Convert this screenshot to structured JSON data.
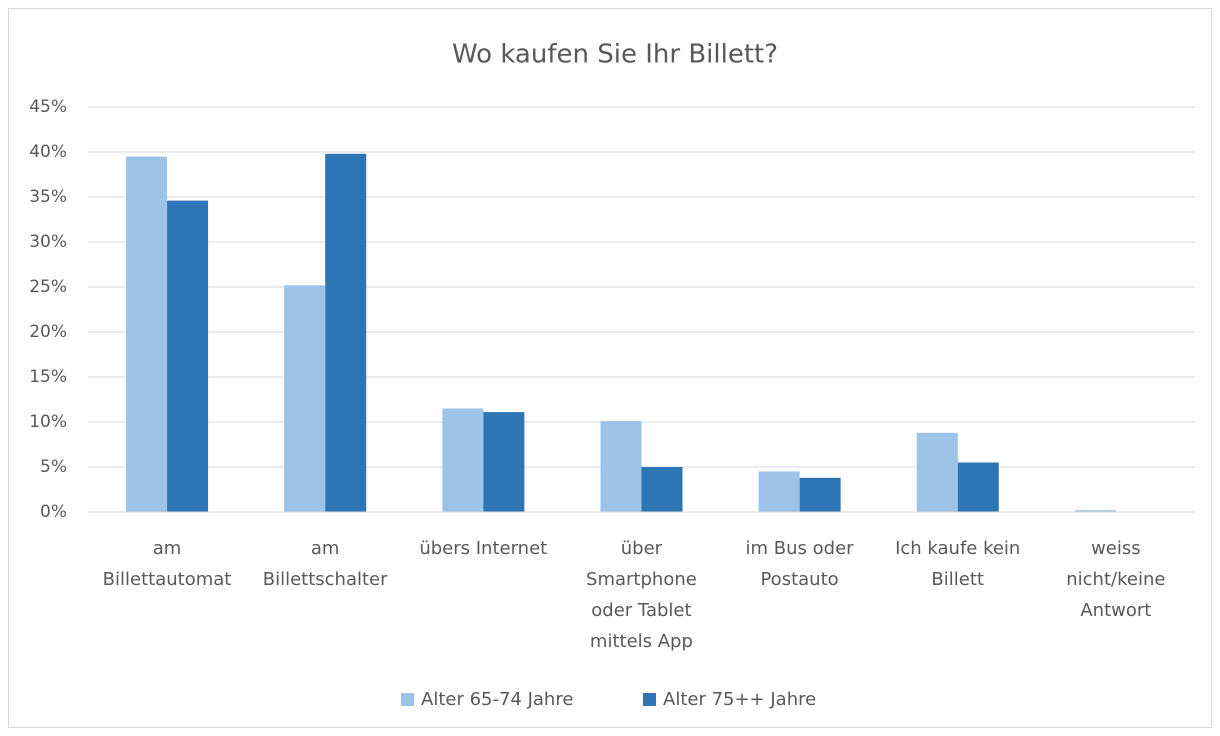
{
  "chart_data": {
    "type": "bar",
    "title": "Wo kaufen Sie Ihr Billett?",
    "categories": [
      "am\nBillettautomat",
      "am\nBillettschalter",
      "übers Internet",
      "über\nSmartphone\noder Tablet\nmittels App",
      "im Bus oder\nPostauto",
      "Ich kaufe kein\nBillett",
      "weiss\nnicht/keine\nAntwort"
    ],
    "series": [
      {
        "name": "Alter 65-74 Jahre",
        "color": "#9dc3e6",
        "values": [
          39.5,
          25.2,
          11.5,
          10.1,
          4.5,
          8.8,
          0.2
        ]
      },
      {
        "name": "Alter 75++ Jahre",
        "color": "#2e75b6",
        "values": [
          34.6,
          39.8,
          11.1,
          5.0,
          3.8,
          5.5,
          0
        ]
      }
    ],
    "ylim": [
      0,
      45
    ],
    "yticks": [
      {
        "value": 0,
        "label": "0%"
      },
      {
        "value": 5,
        "label": "5%"
      },
      {
        "value": 10,
        "label": "10%"
      },
      {
        "value": 15,
        "label": "15%"
      },
      {
        "value": 20,
        "label": "20%"
      },
      {
        "value": 25,
        "label": "25%"
      },
      {
        "value": 30,
        "label": "30%"
      },
      {
        "value": 35,
        "label": "35%"
      },
      {
        "value": 40,
        "label": "40%"
      },
      {
        "value": 45,
        "label": "45%"
      }
    ],
    "grid": true,
    "legend": "bottom"
  }
}
